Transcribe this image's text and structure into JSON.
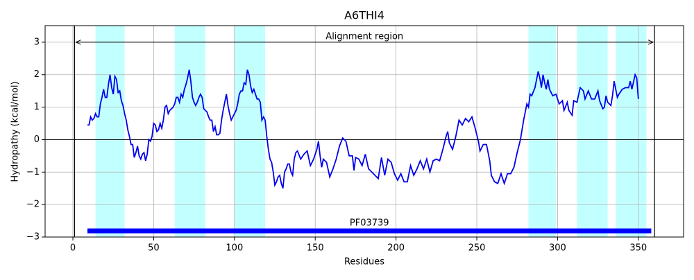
{
  "chart_data": {
    "type": "line",
    "title": "A6THI4",
    "x_label": "Residues",
    "y_label": "Hydropathy (kcal/mol)",
    "color": "#0000ee",
    "xlim": [
      -17.2,
      378
    ],
    "ylim": [
      -3,
      3.51
    ],
    "xticks": [
      0,
      50,
      100,
      150,
      200,
      250,
      300,
      350
    ],
    "yticks": [
      {
        "value": -3,
        "label": "−3"
      },
      {
        "value": -2,
        "label": "−2"
      },
      {
        "value": -1,
        "label": "−1"
      },
      0,
      1,
      2,
      3
    ],
    "grid": true,
    "region_color": "#c2ffff",
    "regions": [
      [
        14,
        32
      ],
      [
        63,
        82
      ],
      [
        100,
        119
      ],
      [
        282,
        299
      ],
      [
        312,
        331
      ],
      [
        336,
        355
      ]
    ],
    "alignment": {
      "label": "Alignment region",
      "start": 1,
      "end": 360,
      "y": 3
    },
    "domain": {
      "label": "PF03739",
      "start": 9,
      "end": 358,
      "y": -2.81,
      "color": "#0000ff"
    },
    "x": [
      9,
      10,
      11,
      12,
      13,
      14,
      15,
      16,
      17,
      18,
      19,
      20,
      21,
      22,
      23,
      24,
      25,
      26,
      27,
      28,
      29,
      30,
      31,
      32,
      33,
      34,
      35,
      36,
      37,
      38,
      39,
      40,
      41,
      42,
      43,
      44,
      45,
      46,
      47,
      48,
      49,
      50,
      51,
      52,
      53,
      54,
      55,
      56,
      57,
      58,
      59,
      60,
      61,
      62,
      63,
      64,
      65,
      66,
      67,
      68,
      69,
      70,
      71,
      72,
      73,
      74,
      75,
      76,
      77,
      78,
      79,
      80,
      81,
      82,
      83,
      84,
      85,
      86,
      87,
      88,
      89,
      90,
      91,
      92,
      93,
      94,
      95,
      96,
      97,
      98,
      99,
      100,
      101,
      102,
      103,
      104,
      105,
      106,
      107,
      108,
      109,
      110,
      111,
      112,
      113,
      114,
      115,
      116,
      117,
      118,
      119,
      120,
      121,
      122,
      123,
      124,
      125,
      126,
      127,
      128,
      129,
      130,
      131,
      132,
      133,
      134,
      135,
      136,
      137,
      138,
      139,
      141,
      143,
      145,
      147,
      149,
      151,
      152,
      153,
      154,
      155,
      157,
      159,
      161,
      163,
      165,
      167,
      169,
      171,
      173,
      174,
      175,
      177,
      179,
      181,
      183,
      185,
      187,
      189,
      191,
      193,
      195,
      197,
      199,
      201,
      203,
      205,
      207,
      209,
      211,
      213,
      215,
      217,
      219,
      221,
      223,
      225,
      227,
      229,
      231,
      232,
      233,
      235,
      237,
      239,
      241,
      243,
      245,
      247,
      249,
      251,
      252,
      254,
      256,
      258,
      259,
      261,
      263,
      265,
      267,
      269,
      271,
      273,
      275,
      277,
      279,
      281,
      282,
      283,
      284,
      286,
      288,
      289,
      290,
      291,
      292,
      293,
      294,
      295,
      297,
      299,
      301,
      303,
      304,
      306,
      307,
      309,
      310,
      312,
      314,
      316,
      317,
      319,
      321,
      323,
      325,
      326,
      328,
      329,
      330,
      331,
      333,
      334,
      335,
      337,
      338,
      340,
      342,
      344,
      345,
      346,
      348,
      349,
      350
    ],
    "values": [
      0.45,
      0.45,
      0.7,
      0.6,
      0.65,
      0.8,
      0.7,
      0.7,
      1.1,
      1.3,
      1.55,
      1.3,
      1.3,
      1.7,
      2.0,
      1.6,
      1.4,
      1.95,
      1.85,
      1.45,
      1.5,
      1.2,
      1.05,
      0.8,
      0.6,
      0.3,
      0.1,
      -0.15,
      -0.15,
      -0.55,
      -0.4,
      -0.2,
      -0.5,
      -0.6,
      -0.45,
      -0.4,
      -0.65,
      -0.45,
      0,
      -0.05,
      0.1,
      0.5,
      0.45,
      0.25,
      0.3,
      0.5,
      0.35,
      0.6,
      1.0,
      1.05,
      0.8,
      0.9,
      0.95,
      1.0,
      1.1,
      1.3,
      1.3,
      1.15,
      1.4,
      1.3,
      1.55,
      1.7,
      1.9,
      2.15,
      1.8,
      1.3,
      1.15,
      1.05,
      1.15,
      1.3,
      1.4,
      1.3,
      0.95,
      0.9,
      0.85,
      0.7,
      0.6,
      0.6,
      0.25,
      0.4,
      0.15,
      0.15,
      0.2,
      0.6,
      0.9,
      1.15,
      1.4,
      1.05,
      0.8,
      0.6,
      0.7,
      0.8,
      0.9,
      1.1,
      1.4,
      1.5,
      1.5,
      1.75,
      1.7,
      2.15,
      2.0,
      1.65,
      1.45,
      1.55,
      1.4,
      1.25,
      1.25,
      1.15,
      0.6,
      0.7,
      0.6,
      0.1,
      -0.3,
      -0.6,
      -0.7,
      -1.0,
      -1.4,
      -1.3,
      -1.15,
      -1.1,
      -1.35,
      -1.5,
      -1.0,
      -0.9,
      -0.75,
      -0.75,
      -1.0,
      -1.1,
      -0.6,
      -0.4,
      -0.35,
      -0.6,
      -0.45,
      -0.35,
      -0.8,
      -0.6,
      -0.3,
      -0.05,
      -0.5,
      -0.85,
      -0.6,
      -0.7,
      -1.15,
      -0.9,
      -0.6,
      -0.2,
      0.05,
      -0.05,
      -0.5,
      -0.5,
      -0.95,
      -0.55,
      -0.6,
      -0.8,
      -0.45,
      -0.9,
      -1.0,
      -1.1,
      -1.2,
      -0.55,
      -1.1,
      -0.6,
      -0.7,
      -1.05,
      -1.25,
      -1.05,
      -1.3,
      -1.3,
      -0.8,
      -1.1,
      -0.9,
      -0.65,
      -0.9,
      -0.6,
      -1.0,
      -0.65,
      -0.6,
      -0.65,
      -0.3,
      0.1,
      0.25,
      -0.1,
      -0.3,
      0.1,
      0.6,
      0.45,
      0.65,
      0.55,
      0.7,
      0.35,
      -0.05,
      -0.35,
      -0.15,
      -0.15,
      -0.65,
      -1.1,
      -1.3,
      -1.35,
      -1.05,
      -1.35,
      -1.05,
      -1.05,
      -0.85,
      -0.4,
      0.0,
      0.6,
      1.1,
      1.0,
      1.4,
      1.35,
      1.6,
      2.1,
      1.9,
      1.6,
      2.0,
      1.75,
      1.55,
      1.85,
      1.55,
      1.35,
      1.4,
      1.1,
      1.2,
      0.9,
      1.15,
      0.9,
      0.75,
      1.2,
      1.15,
      1.6,
      1.5,
      1.25,
      1.5,
      1.25,
      1.25,
      1.5,
      1.2,
      0.95,
      1.0,
      1.35,
      1.15,
      1.05,
      1.35,
      1.8,
      1.3,
      1.4,
      1.55,
      1.6,
      1.6,
      1.8,
      1.55,
      2.0,
      1.9,
      1.25
    ]
  }
}
